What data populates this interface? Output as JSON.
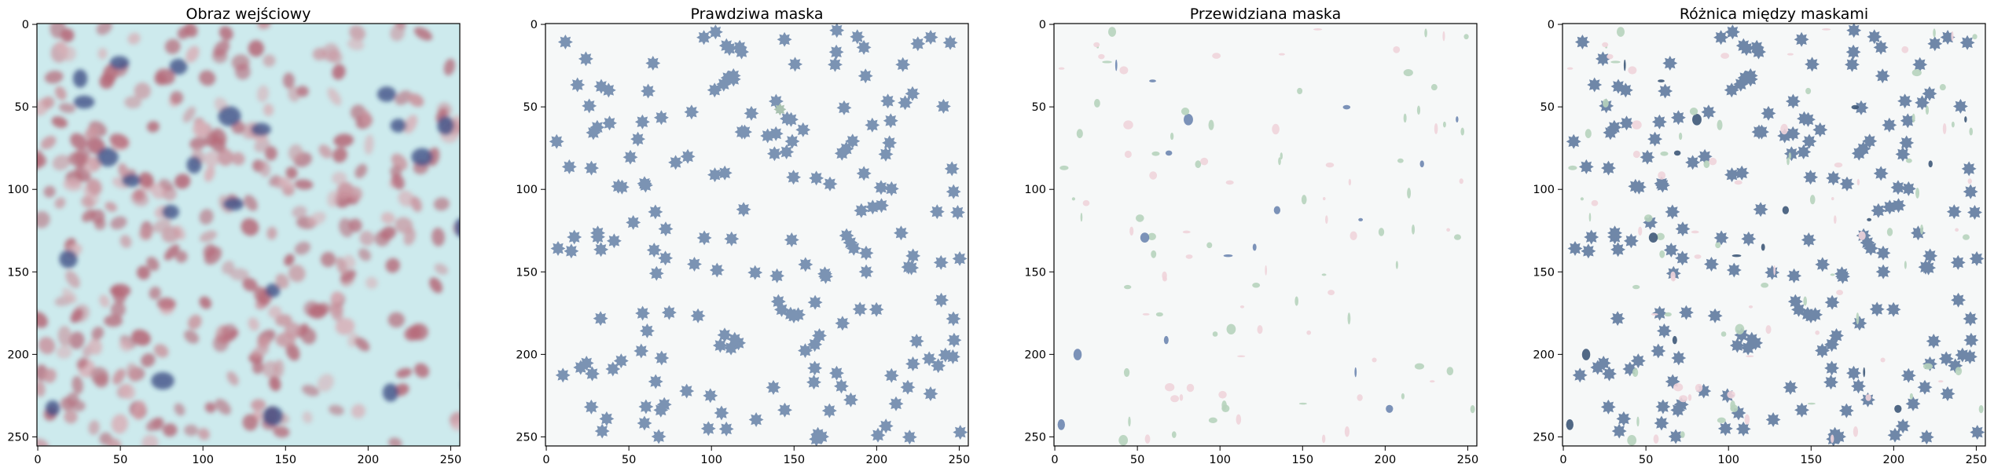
{
  "chart_data": [
    {
      "type": "heatmap",
      "title": "Obraz wejściowy",
      "xlim": [
        0,
        255
      ],
      "ylim": [
        255,
        0
      ],
      "xticks": [
        0,
        50,
        100,
        150,
        200,
        250
      ],
      "yticks": [
        0,
        50,
        100,
        150,
        200,
        250
      ],
      "image": "microscopy-tissue-image",
      "colors": {
        "background": "#cdeaed",
        "nuclei": "#b35b6c",
        "dark_cells": "#2f3f7a"
      }
    },
    {
      "type": "heatmap",
      "title": "Prawdziwa maska",
      "xlim": [
        0,
        255
      ],
      "ylim": [
        255,
        0
      ],
      "xticks": [
        0,
        50,
        100,
        150,
        200,
        250
      ],
      "yticks": [
        0,
        50,
        100,
        150,
        200,
        250
      ],
      "image": "ground-truth-mask",
      "colors": {
        "background": "#f6f8f8",
        "mask": "#7b93b3",
        "green": "#a9c2b0"
      }
    },
    {
      "type": "heatmap",
      "title": "Przewidziana maska",
      "xlim": [
        0,
        255
      ],
      "ylim": [
        255,
        0
      ],
      "xticks": [
        0,
        50,
        100,
        150,
        200,
        250
      ],
      "yticks": [
        0,
        50,
        100,
        150,
        200,
        250
      ],
      "image": "predicted-mask",
      "colors": {
        "background": "#f6f8f8",
        "pink": "#f0d4da",
        "green": "#b7d3bd",
        "blue": "#6e86b0"
      }
    },
    {
      "type": "heatmap",
      "title": "Różnica między maskami",
      "xlim": [
        0,
        255
      ],
      "ylim": [
        255,
        0
      ],
      "xticks": [
        0,
        50,
        100,
        150,
        200,
        250
      ],
      "yticks": [
        0,
        50,
        100,
        150,
        200,
        250
      ],
      "image": "mask-difference",
      "colors": {
        "background": "#f6f8f8",
        "mask": "#6f87a8",
        "pink": "#f0d4da",
        "green": "#b7d3bd"
      }
    }
  ]
}
